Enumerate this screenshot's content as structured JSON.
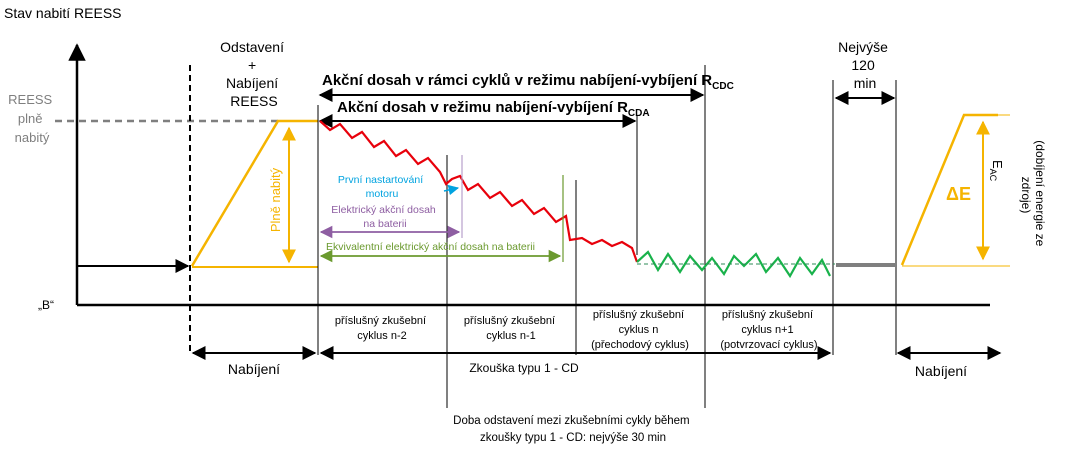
{
  "title": "Stav nabití REESS",
  "labels": {
    "reess_full": [
      "REESS",
      "plně",
      "nabitý"
    ],
    "point_b": "„B“",
    "parking_charging": [
      "Odstavení",
      "+",
      "Nabíjení",
      "REESS"
    ],
    "max_120": [
      "Nejvýše",
      "120",
      "min"
    ],
    "range_cdc": "Akční dosah v rámci cyklů v režimu nabíjení-vybíjení R",
    "range_cdc_sub": "CDC",
    "range_cda": "Akční dosah v režimu nabíjení-vybíjení R",
    "range_cda_sub": "CDA",
    "first_start": [
      "První nastartování",
      "motoru"
    ],
    "electric_range": [
      "Elektrický akční dosah",
      "na baterii"
    ],
    "equivalent_range": "Ekvivalentní elektrický akční dosah na baterii",
    "fully_charged_vertical": "Plně nabitý",
    "delta_e": "ΔE",
    "e_ac": "E",
    "e_ac_sub": "AC",
    "e_ac_desc": [
      "(dobíjení energie ze",
      "zdroje)"
    ],
    "cycles": [
      [
        "příslušný zkušební",
        "cyklus n-2"
      ],
      [
        "příslušný zkušební",
        "cyklus n-1"
      ],
      [
        "příslušný zkušební",
        "cyklus n",
        "(přechodový cyklus)"
      ],
      [
        "příslušný zkušební",
        "cyklus n+1",
        "(potvrzovací cyklus)"
      ]
    ],
    "charging_left": "Nabíjení",
    "charging_right": "Nabíjení",
    "test_type": "Zkouška typu 1 - CD",
    "park_time": [
      "Doba odstavení  mezi zkušebními  cykly během",
      "zkoušky typu 1 - CD: nejvýše 30 min"
    ]
  },
  "colors": {
    "axis": "#000000",
    "orange": "#f5b400",
    "red": "#e8000b",
    "green": "#19b24b",
    "grey": "#7f7f7f",
    "blue": "#00a3e0",
    "purple": "#8e5ea2",
    "olive": "#6b9a2f"
  }
}
